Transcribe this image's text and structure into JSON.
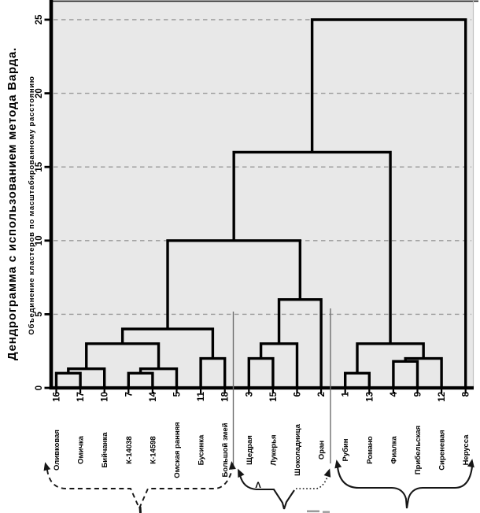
{
  "title": "Дендрограмма с использованием метода Варда.",
  "axis": {
    "y_label": "Объединение кластеров по масштабированному расстоянию",
    "tick_labels": [
      "0",
      "5",
      "10",
      "15",
      "20",
      "25"
    ],
    "tick_values": [
      0,
      5,
      10,
      15,
      20,
      25
    ]
  },
  "colors": {
    "plot_bg": "#e8e8e8",
    "line": "#000000",
    "grid": "#999999",
    "annotation_line": "#6e6e6e",
    "brace": "#161616"
  },
  "annotations": {
    "caret_symbol": "Λ",
    "groups": [
      {
        "style": "dashed-brace-with-arrows",
        "from_leaf": "16",
        "to_leaf": "18"
      },
      {
        "style": "solid-dotted-brace-with-arrows",
        "from_leaf": "3",
        "to_leaf": "2"
      },
      {
        "style": "solid-brace-with-arrows",
        "from_leaf": "1",
        "to_leaf": "8"
      }
    ],
    "pointer_lines": [
      {
        "at_leaf": "18"
      },
      {
        "between_leaves": "2 | 1"
      }
    ]
  },
  "chart_data": {
    "type": "dendrogram",
    "method": "Ward linkage",
    "orientation": "leaves-bottom",
    "ylim": [
      0,
      25
    ],
    "grid_values": [
      5,
      10,
      15,
      20,
      25
    ],
    "legend": "none",
    "leaves": [
      {
        "num": "16",
        "name": "Оливковая"
      },
      {
        "num": "17",
        "name": "Омичка"
      },
      {
        "num": "10",
        "name": "Бийчанка"
      },
      {
        "num": "7",
        "name": "К-14038"
      },
      {
        "num": "14",
        "name": "К-14598"
      },
      {
        "num": "5",
        "name": "Омская ранняя"
      },
      {
        "num": "11",
        "name": "Бусинка"
      },
      {
        "num": "18",
        "name": "Большой змей"
      },
      {
        "num": "3",
        "name": "Щедрая"
      },
      {
        "num": "15",
        "name": "Лукерья"
      },
      {
        "num": "6",
        "name": "Шоколадница"
      },
      {
        "num": "2",
        "name": "Оран"
      },
      {
        "num": "1",
        "name": "Рубин"
      },
      {
        "num": "13",
        "name": "Романо"
      },
      {
        "num": "4",
        "name": "Фиалка"
      },
      {
        "num": "9",
        "name": "Прибельская"
      },
      {
        "num": "12",
        "name": "Сиреневая"
      },
      {
        "num": "8",
        "name": "Нерусса"
      }
    ],
    "merges": [
      {
        "a": "L0",
        "b": "L1",
        "h": 1.0
      },
      {
        "a": "M0",
        "b": "L2",
        "h": 1.3
      },
      {
        "a": "L3",
        "b": "L4",
        "h": 1.0
      },
      {
        "a": "M2",
        "b": "L5",
        "h": 1.3
      },
      {
        "a": "M1",
        "b": "M3",
        "h": 3.0
      },
      {
        "a": "L6",
        "b": "L7",
        "h": 2.0
      },
      {
        "a": "M4",
        "b": "M5",
        "h": 4.0
      },
      {
        "a": "L8",
        "b": "L9",
        "h": 2.0
      },
      {
        "a": "M7",
        "b": "L10",
        "h": 3.0
      },
      {
        "a": "M8",
        "b": "L11",
        "h": 6.0
      },
      {
        "a": "M6",
        "b": "M9",
        "h": 10.0
      },
      {
        "a": "L12",
        "b": "L13",
        "h": 1.0
      },
      {
        "a": "L14",
        "b": "L15",
        "h": 1.8
      },
      {
        "a": "M12",
        "b": "L16",
        "h": 2.0
      },
      {
        "a": "M11",
        "b": "M13",
        "h": 3.0
      },
      {
        "a": "M10",
        "b": "M14",
        "h": 16.0
      },
      {
        "a": "M15",
        "b": "L17",
        "h": 25.0
      }
    ]
  }
}
